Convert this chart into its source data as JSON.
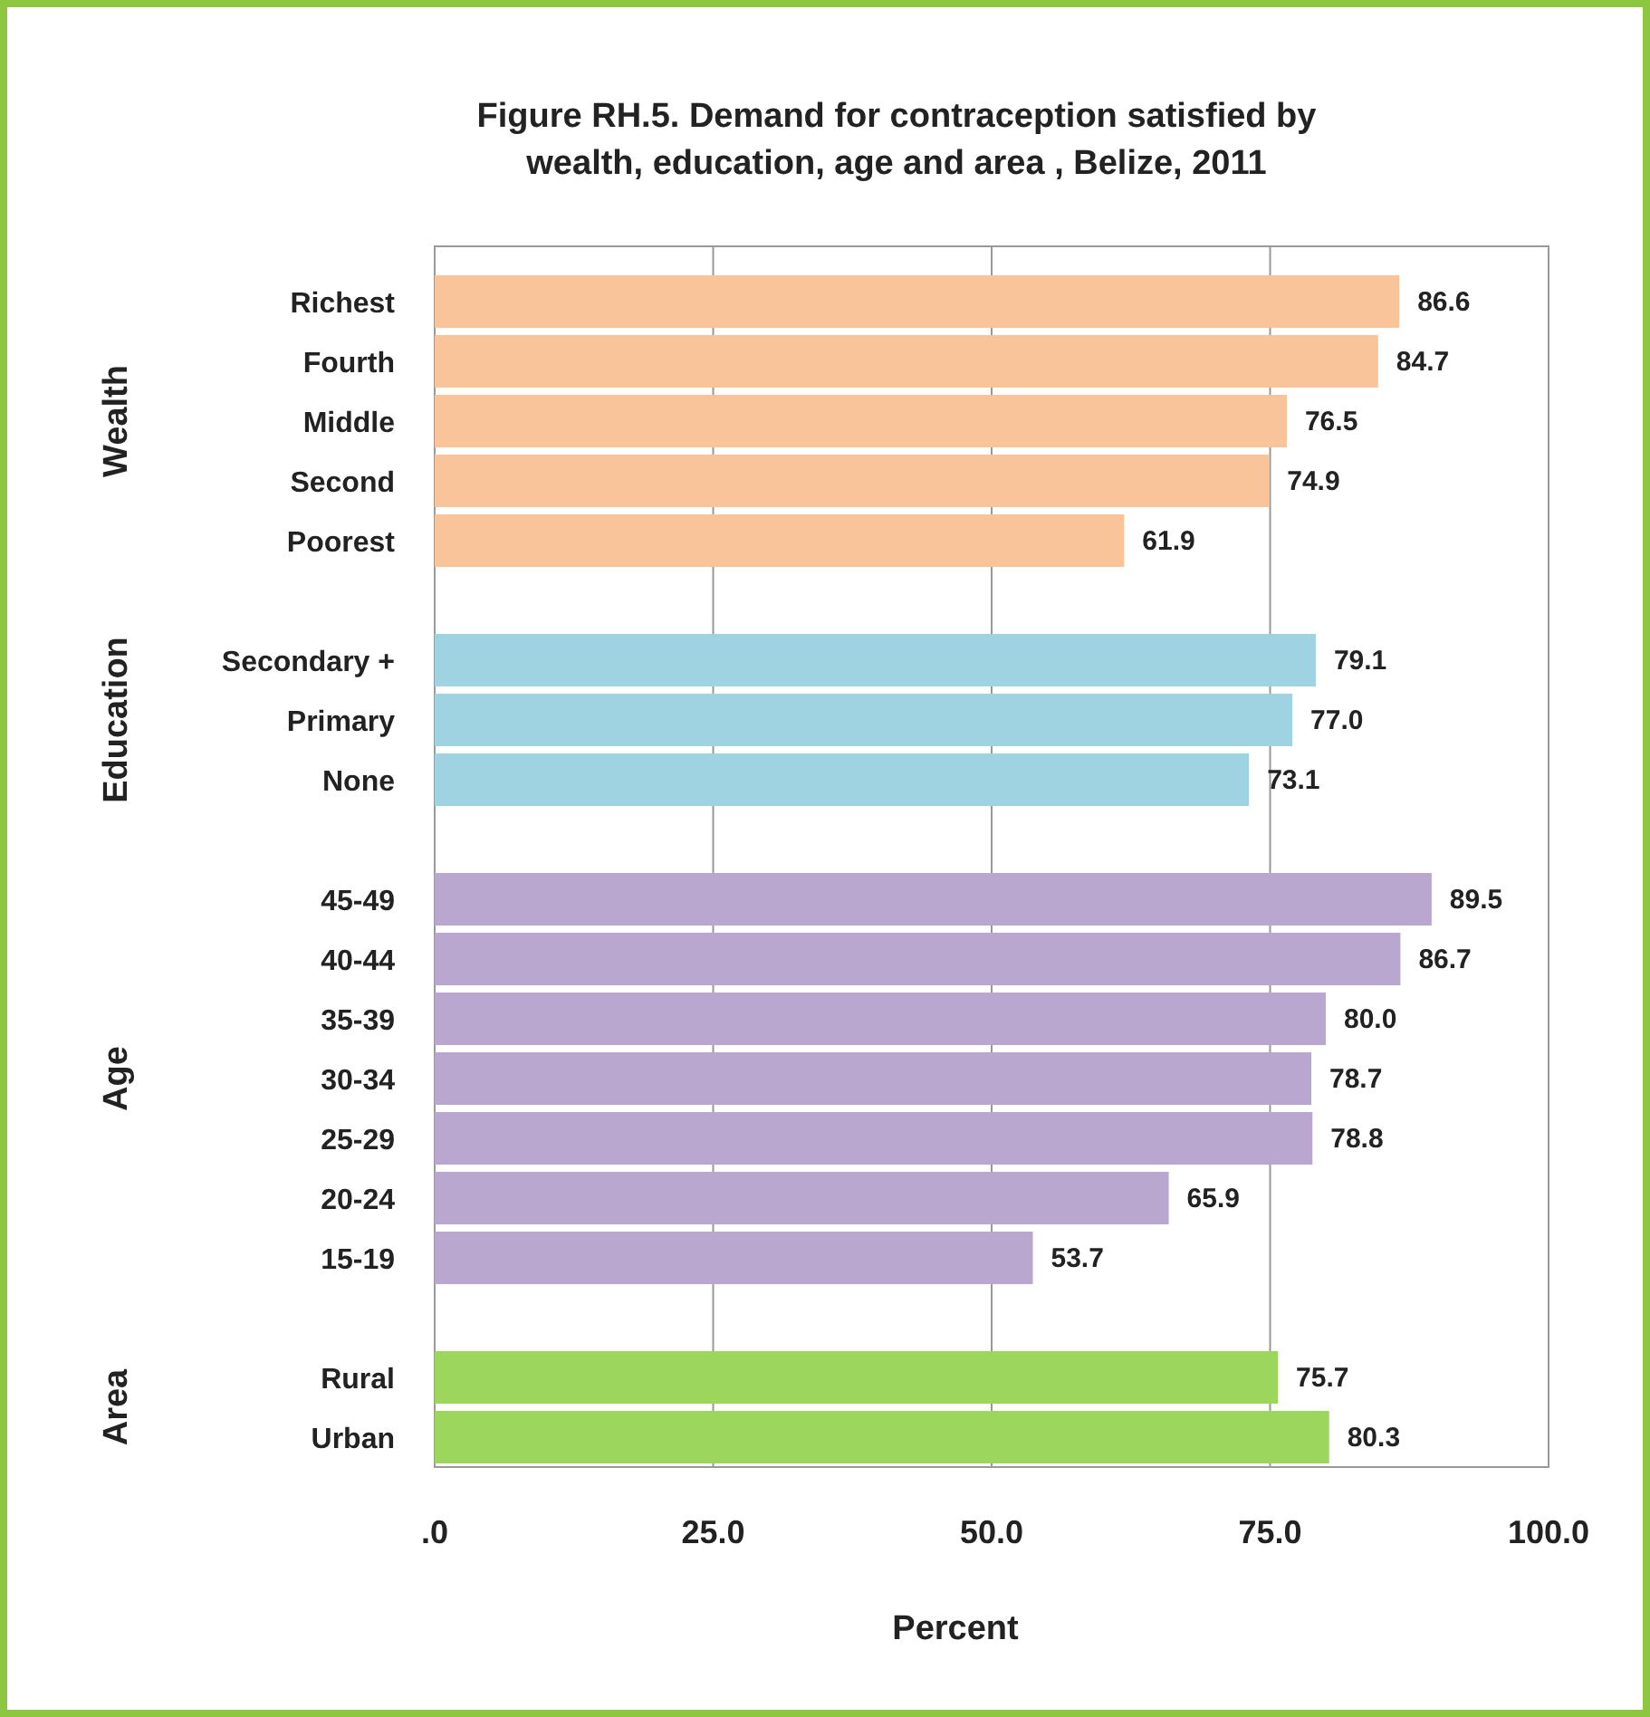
{
  "chart_data": {
    "type": "bar",
    "orientation": "horizontal",
    "title": "Figure RH.5. Demand for contraception satisfied by wealth, education, age and area , Belize, 2011",
    "xlabel": "Percent",
    "categories": [
      "Richest",
      "Fourth",
      "Middle",
      "Second",
      "Poorest",
      null,
      "Secondary +",
      "Primary",
      "None",
      null,
      "45-49",
      "40-44",
      "35-39",
      "30-34",
      "25-29",
      "20-24",
      "15-19",
      null,
      "Rural",
      "Urban"
    ],
    "values": [
      86.6,
      84.7,
      76.5,
      74.9,
      61.9,
      null,
      79.1,
      77.0,
      73.1,
      null,
      89.5,
      86.7,
      80.0,
      78.7,
      78.8,
      65.9,
      53.7,
      null,
      75.7,
      80.3
    ],
    "value_labels": [
      "86.6",
      "84.7",
      "76.5",
      "74.9",
      "61.9",
      null,
      "79.1",
      "77.0",
      "73.1",
      null,
      "89.5",
      "86.7",
      "80.0",
      "78.7",
      "78.8",
      "65.9",
      "53.7",
      null,
      "75.7",
      "80.3"
    ],
    "colors": [
      "#f9c49a",
      "#f9c49a",
      "#f9c49a",
      "#f9c49a",
      "#f9c49a",
      null,
      "#9fd3e2",
      "#9fd3e2",
      "#9fd3e2",
      null,
      "#b9a7cf",
      "#b9a7cf",
      "#b9a7cf",
      "#b9a7cf",
      "#b9a7cf",
      "#b9a7cf",
      "#b9a7cf",
      null,
      "#9dd65c",
      "#9dd65c"
    ],
    "annotations": [
      "Wealth",
      "Education",
      "Age",
      "Area"
    ],
    "xlim": [
      0,
      100
    ],
    "xticks": [
      {
        "value": 0,
        "label": ".0"
      },
      {
        "value": 25,
        "label": "25.0"
      },
      {
        "value": 50,
        "label": "50.0"
      },
      {
        "value": 75,
        "label": "75.0"
      },
      {
        "value": 100,
        "label": "100.0"
      }
    ],
    "grid": "x"
  }
}
